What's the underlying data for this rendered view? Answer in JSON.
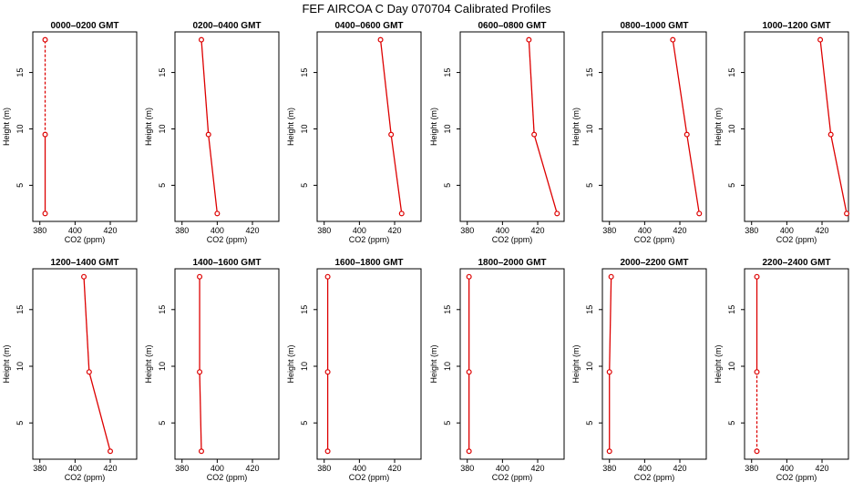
{
  "figure": {
    "title": "FEF AIRCOA C  Day 070704  Calibrated Profiles"
  },
  "colors": {
    "series": "#dd0000",
    "axis": "#000000"
  },
  "chart_data": [
    {
      "type": "line",
      "title": "0000–0200 GMT",
      "xlabel": "CO2 (ppm)",
      "ylabel": "Height (m)",
      "xlim": [
        376,
        435
      ],
      "ylim": [
        1.8,
        18.6
      ],
      "xticks": [
        380,
        400,
        420
      ],
      "yticks": [
        5,
        10,
        15
      ],
      "x": [
        383,
        383,
        383
      ],
      "y": [
        2.5,
        9.5,
        17.9
      ],
      "dotted_segment": [
        1,
        2
      ]
    },
    {
      "type": "line",
      "title": "0200–0400 GMT",
      "xlabel": "CO2 (ppm)",
      "ylabel": "Height (m)",
      "xlim": [
        376,
        435
      ],
      "ylim": [
        1.8,
        18.6
      ],
      "xticks": [
        380,
        400,
        420
      ],
      "yticks": [
        5,
        10,
        15
      ],
      "x": [
        400,
        395,
        391
      ],
      "y": [
        2.5,
        9.5,
        17.9
      ]
    },
    {
      "type": "line",
      "title": "0400–0600 GMT",
      "xlabel": "CO2 (ppm)",
      "ylabel": "Height (m)",
      "xlim": [
        376,
        435
      ],
      "ylim": [
        1.8,
        18.6
      ],
      "xticks": [
        380,
        400,
        420
      ],
      "yticks": [
        5,
        10,
        15
      ],
      "x": [
        424,
        418,
        412
      ],
      "y": [
        2.5,
        9.5,
        17.9
      ]
    },
    {
      "type": "line",
      "title": "0600–0800 GMT",
      "xlabel": "CO2 (ppm)",
      "ylabel": "Height (m)",
      "xlim": [
        376,
        435
      ],
      "ylim": [
        1.8,
        18.6
      ],
      "xticks": [
        380,
        400,
        420
      ],
      "yticks": [
        5,
        10,
        15
      ],
      "x": [
        431,
        418,
        415
      ],
      "y": [
        2.5,
        9.5,
        17.9
      ]
    },
    {
      "type": "line",
      "title": "0800–1000 GMT",
      "xlabel": "CO2 (ppm)",
      "ylabel": "Height (m)",
      "xlim": [
        376,
        435
      ],
      "ylim": [
        1.8,
        18.6
      ],
      "xticks": [
        380,
        400,
        420
      ],
      "yticks": [
        5,
        10,
        15
      ],
      "x": [
        431,
        424,
        416
      ],
      "y": [
        2.5,
        9.5,
        17.9
      ]
    },
    {
      "type": "line",
      "title": "1000–1200 GMT",
      "xlabel": "CO2 (ppm)",
      "ylabel": "Height (m)",
      "xlim": [
        376,
        435
      ],
      "ylim": [
        1.8,
        18.6
      ],
      "xticks": [
        380,
        400,
        420
      ],
      "yticks": [
        5,
        10,
        15
      ],
      "x": [
        434,
        425,
        419
      ],
      "y": [
        2.5,
        9.5,
        17.9
      ]
    },
    {
      "type": "line",
      "title": "1200–1400 GMT",
      "xlabel": "CO2 (ppm)",
      "ylabel": "Height (m)",
      "xlim": [
        376,
        435
      ],
      "ylim": [
        1.8,
        18.6
      ],
      "xticks": [
        380,
        400,
        420
      ],
      "yticks": [
        5,
        10,
        15
      ],
      "x": [
        420,
        408,
        405
      ],
      "y": [
        2.5,
        9.5,
        17.9
      ]
    },
    {
      "type": "line",
      "title": "1400–1600 GMT",
      "xlabel": "CO2 (ppm)",
      "ylabel": "Height (m)",
      "xlim": [
        376,
        435
      ],
      "ylim": [
        1.8,
        18.6
      ],
      "xticks": [
        380,
        400,
        420
      ],
      "yticks": [
        5,
        10,
        15
      ],
      "x": [
        391,
        390,
        390
      ],
      "y": [
        2.5,
        9.5,
        17.9
      ]
    },
    {
      "type": "line",
      "title": "1600–1800 GMT",
      "xlabel": "CO2 (ppm)",
      "ylabel": "Height (m)",
      "xlim": [
        376,
        435
      ],
      "ylim": [
        1.8,
        18.6
      ],
      "xticks": [
        380,
        400,
        420
      ],
      "yticks": [
        5,
        10,
        15
      ],
      "x": [
        382,
        382,
        382
      ],
      "y": [
        2.5,
        9.5,
        17.9
      ]
    },
    {
      "type": "line",
      "title": "1800–2000 GMT",
      "xlabel": "CO2 (ppm)",
      "ylabel": "Height (m)",
      "xlim": [
        376,
        435
      ],
      "ylim": [
        1.8,
        18.6
      ],
      "xticks": [
        380,
        400,
        420
      ],
      "yticks": [
        5,
        10,
        15
      ],
      "x": [
        381,
        381,
        381
      ],
      "y": [
        2.5,
        9.5,
        17.9
      ]
    },
    {
      "type": "line",
      "title": "2000–2200 GMT",
      "xlabel": "CO2 (ppm)",
      "ylabel": "Height (m)",
      "xlim": [
        376,
        435
      ],
      "ylim": [
        1.8,
        18.6
      ],
      "xticks": [
        380,
        400,
        420
      ],
      "yticks": [
        5,
        10,
        15
      ],
      "x": [
        380,
        380,
        381
      ],
      "y": [
        2.5,
        9.5,
        17.9
      ]
    },
    {
      "type": "line",
      "title": "2200–2400 GMT",
      "xlabel": "CO2 (ppm)",
      "ylabel": "Height (m)",
      "xlim": [
        376,
        435
      ],
      "ylim": [
        1.8,
        18.6
      ],
      "xticks": [
        380,
        400,
        420
      ],
      "yticks": [
        5,
        10,
        15
      ],
      "x": [
        383,
        383,
        383
      ],
      "y": [
        2.5,
        9.5,
        17.9
      ],
      "dotted_segment": [
        0,
        1
      ]
    }
  ]
}
